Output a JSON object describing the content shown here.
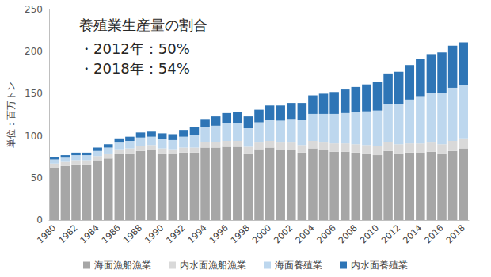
{
  "chart_data": {
    "type": "bar",
    "stacked": true,
    "y_label": "単位：百万トン",
    "annotations": [
      "養殖業生産量の割合",
      "・2012年：50%",
      "・2018年：54%"
    ],
    "categories": [
      "1980",
      null,
      "1982",
      null,
      "1984",
      null,
      "1986",
      null,
      "1988",
      null,
      "1990",
      null,
      "1992",
      null,
      "1994",
      null,
      "1996",
      null,
      "1998",
      null,
      "2000",
      null,
      "2002",
      null,
      "2004",
      null,
      "2006",
      null,
      "2008",
      null,
      "2010",
      null,
      "2012",
      null,
      "2014",
      null,
      "2016",
      null,
      "2018"
    ],
    "series": [
      {
        "name": "海面漁船漁業",
        "color": "#a6a6a6",
        "values": [
          62,
          64,
          66,
          66,
          71,
          73,
          78,
          79,
          82,
          83,
          79,
          78,
          80,
          80,
          86,
          86,
          87,
          87,
          79,
          84,
          86,
          83,
          83,
          80,
          85,
          83,
          81,
          81,
          80,
          79,
          77,
          82,
          79,
          80,
          80,
          81,
          79,
          82,
          85
        ]
      },
      {
        "name": "内水面漁船漁業",
        "color": "#d9d9d9",
        "values": [
          5,
          5,
          5,
          5,
          5,
          6,
          6,
          6,
          6,
          6,
          6,
          6,
          6,
          6,
          7,
          7,
          7,
          7,
          8,
          8,
          8,
          9,
          9,
          9,
          9,
          9,
          10,
          10,
          10,
          10,
          11,
          11,
          11,
          11,
          11,
          11,
          11,
          12,
          12
        ]
      },
      {
        "name": "海面養殖業",
        "color": "#bdd7ee",
        "values": [
          5,
          5,
          6,
          6,
          6,
          7,
          8,
          9,
          10,
          10,
          11,
          11,
          13,
          15,
          17,
          19,
          21,
          21,
          22,
          24,
          25,
          26,
          28,
          30,
          32,
          34,
          35,
          36,
          38,
          40,
          42,
          45,
          48,
          52,
          56,
          59,
          61,
          63,
          63
        ]
      },
      {
        "name": "内水面養殖業",
        "color": "#2e75b6",
        "values": [
          3,
          3,
          3,
          3,
          4,
          4,
          5,
          5,
          6,
          6,
          7,
          7,
          8,
          9,
          10,
          11,
          12,
          13,
          14,
          15,
          17,
          18,
          19,
          20,
          22,
          24,
          26,
          28,
          30,
          32,
          34,
          36,
          38,
          41,
          44,
          46,
          48,
          50,
          51
        ]
      }
    ],
    "ylim": [
      0,
      250
    ],
    "yticks": [
      0,
      50,
      100,
      150,
      200,
      250
    ],
    "grid": false,
    "legend": "bottom"
  }
}
